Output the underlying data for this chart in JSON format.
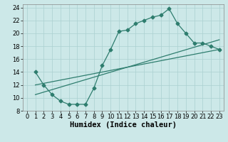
{
  "line1_x": [
    1,
    2,
    3,
    4,
    5,
    6,
    7,
    8,
    9,
    10,
    11,
    12,
    13,
    14,
    15,
    16,
    17,
    18,
    19,
    20,
    21,
    22,
    23
  ],
  "line1_y": [
    14,
    12,
    10.5,
    9.5,
    9,
    9,
    9,
    11.5,
    15,
    17.5,
    20.3,
    20.5,
    21.5,
    22,
    22.5,
    22.8,
    23.8,
    21.5,
    20,
    18.5,
    18.5,
    18,
    17.5
  ],
  "line2_x": [
    1,
    23
  ],
  "line2_y": [
    10.5,
    19.0
  ],
  "line3_x": [
    1,
    23
  ],
  "line3_y": [
    12.0,
    17.5
  ],
  "line_color": "#2e7d6e",
  "marker": "D",
  "marker_size": 2.5,
  "bg_color": "#cce8e8",
  "grid_color": "#aad0d0",
  "xlabel": "Humidex (Indice chaleur)",
  "xlim": [
    -0.5,
    23.5
  ],
  "ylim": [
    8,
    24.5
  ],
  "xticks": [
    0,
    1,
    2,
    3,
    4,
    5,
    6,
    7,
    8,
    9,
    10,
    11,
    12,
    13,
    14,
    15,
    16,
    17,
    18,
    19,
    20,
    21,
    22,
    23
  ],
  "yticks": [
    8,
    10,
    12,
    14,
    16,
    18,
    20,
    22,
    24
  ],
  "tick_fontsize": 6,
  "xlabel_fontsize": 7.5
}
